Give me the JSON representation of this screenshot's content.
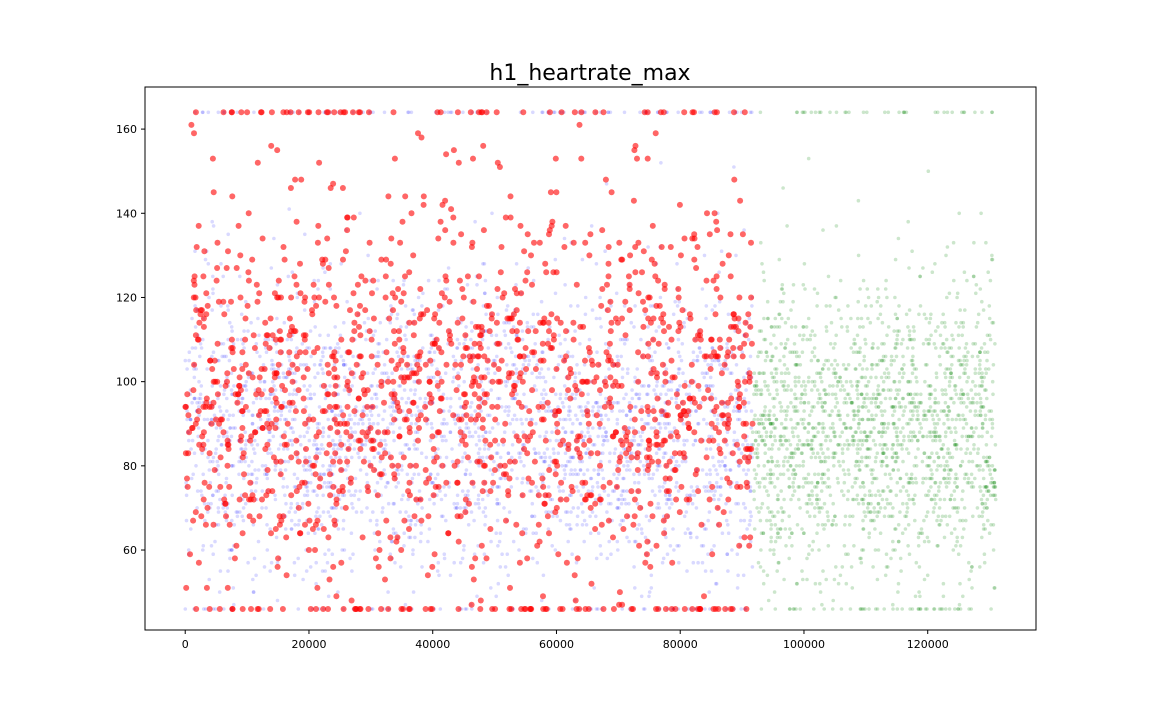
{
  "chart_data": {
    "type": "scatter",
    "title": "h1_heartrate_max",
    "xlabel": "",
    "ylabel": "",
    "xlim": [
      -6500,
      137500
    ],
    "ylim": [
      41,
      170
    ],
    "grid": false,
    "x_ticks": [
      0,
      20000,
      40000,
      60000,
      80000,
      100000,
      120000
    ],
    "y_ticks": [
      60,
      80,
      100,
      120,
      140,
      160
    ],
    "x_tick_labels": [
      "0",
      "20000",
      "40000",
      "60000",
      "80000",
      "100000",
      "120000"
    ],
    "y_tick_labels": [
      "60",
      "80",
      "100",
      "120",
      "140",
      "160"
    ],
    "y_value_range": [
      46,
      164
    ],
    "series": [
      {
        "color": "#0000ff",
        "opacity": 0.15,
        "x_range": [
          0,
          91700
        ],
        "y_range": [
          46,
          164
        ],
        "y_center": 88,
        "y_spread": 18,
        "approx_points": 2600,
        "layer": "background"
      },
      {
        "color": "#008000",
        "opacity": 0.2,
        "x_range": [
          91700,
          131000
        ],
        "y_range": [
          46,
          164
        ],
        "y_center": 88,
        "y_spread": 18,
        "approx_points": 1900,
        "layer": "background"
      },
      {
        "color": "#ff0000",
        "opacity": 0.6,
        "x_range": [
          0,
          91700
        ],
        "y_range": [
          46,
          164
        ],
        "y_center": 98,
        "y_spread": 24,
        "approx_points": 1500,
        "layer": "foreground"
      }
    ]
  }
}
